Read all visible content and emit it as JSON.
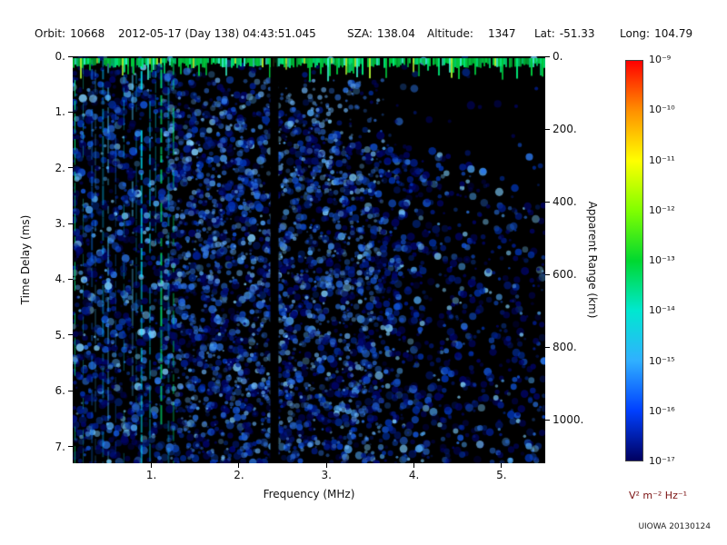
{
  "header": {
    "orbit_label": "Orbit:",
    "orbit_value": "10668",
    "datetime": "2012-05-17 (Day 138) 04:43:51.045",
    "sza_label": "SZA:",
    "sza_value": "138.04",
    "altitude_label": "Altitude:",
    "altitude_value": "1347",
    "lat_label": "Lat:",
    "lat_value": "-51.33",
    "long_label": "Long:",
    "long_value": "104.79"
  },
  "chart_data": {
    "type": "heatmap",
    "description": "Radar sounder ionogram spectrogram: received spectral density vs frequency and time delay",
    "xlabel": "Frequency (MHz)",
    "ylabel": "Time Delay (ms)",
    "y2label": "Apparent Range (km)",
    "xlim": [
      0.1,
      5.5
    ],
    "ylim": [
      0.0,
      7.3
    ],
    "y2lim": [
      0,
      1120
    ],
    "xticks": [
      1,
      2,
      3,
      4,
      5
    ],
    "xtick_labels": [
      "1.",
      "2.",
      "3.",
      "4.",
      "5."
    ],
    "yticks": [
      0,
      1,
      2,
      3,
      4,
      5,
      6,
      7
    ],
    "ytick_labels": [
      "0.",
      "1.",
      "2.",
      "3.",
      "4.",
      "5.",
      "6.",
      "7."
    ],
    "y2ticks": [
      0,
      200,
      400,
      600,
      800,
      1000
    ],
    "y2tick_labels": [
      "0.",
      "200.",
      "400.",
      "600.",
      "800.",
      "1000."
    ],
    "grid": false,
    "colorbar": {
      "scale": "log",
      "max_exponent": -9,
      "min_exponent": -17,
      "tick_labels": [
        "10⁻⁹",
        "10⁻¹⁰",
        "10⁻¹¹",
        "10⁻¹²",
        "10⁻¹³",
        "10⁻¹⁴",
        "10⁻¹⁵",
        "10⁻¹⁶",
        "10⁻¹⁷"
      ],
      "units": "V² m⁻² Hz⁻¹",
      "units_color": "#7a1010",
      "gradient": [
        "#ff0000",
        "#ff9000",
        "#ffff00",
        "#80ff00",
        "#00d830",
        "#00e8d0",
        "#30b0ff",
        "#0040ff",
        "#000060"
      ]
    },
    "features": {
      "surface_band": {
        "delay_ms": 0.15,
        "description": "bright green return band across all frequencies at small time delay"
      },
      "plasma_stripes": {
        "freq_range_mhz": [
          0.1,
          1.3
        ],
        "description": "vertical cyan/green harmonic stripes at low frequency extending to large delays"
      },
      "diffuse_echo": {
        "freq_range_mhz": [
          1.0,
          5.5
        ],
        "description": "diffuse faint blue echo/noise speckle over black background"
      },
      "blank_column_mhz": 2.4
    },
    "credit": "UIOWA 20130124"
  }
}
